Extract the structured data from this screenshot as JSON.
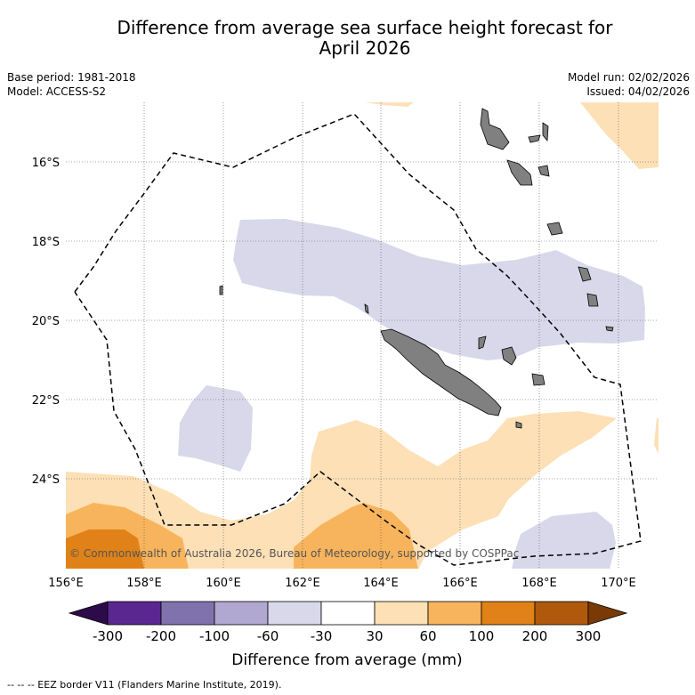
{
  "title_line1": "Difference from average sea surface height forecast for",
  "title_line2": "April 2026",
  "left_meta": {
    "base_period": "Base period: 1981-2018",
    "model": "Model: ACCESS-S2"
  },
  "right_meta": {
    "model_run": "Model run: 02/02/2026",
    "issued": "Issued: 04/02/2026"
  },
  "copyright": "© Commonwealth of Australia 2026, Bureau of Meteorology, supported by COSPPac",
  "lon_labels": [
    "156°E",
    "158°E",
    "160°E",
    "162°E",
    "164°E",
    "166°E",
    "168°E",
    "170°E"
  ],
  "lat_labels": [
    "16°S",
    "18°S",
    "20°S",
    "22°S",
    "24°S"
  ],
  "colorbar": {
    "ticks": [
      "-300",
      "-200",
      "-100",
      "-60",
      "-30",
      "30",
      "60",
      "100",
      "200",
      "300"
    ],
    "colors": [
      "#5a2790",
      "#8073ad",
      "#b0a8d0",
      "#d8d8ea",
      "#ffffff",
      "#fde0b6",
      "#f8b45c",
      "#e08218",
      "#b0590c"
    ],
    "under_color": "#2d0a4a",
    "over_color": "#7a3a06",
    "label": "Difference from average (mm)"
  },
  "legend_note": "--  --  -- EEZ border V11 (Flanders Marine Institute, 2019).",
  "colors": {
    "land": "#808080",
    "eez": "#000000",
    "grid": "#555555"
  }
}
